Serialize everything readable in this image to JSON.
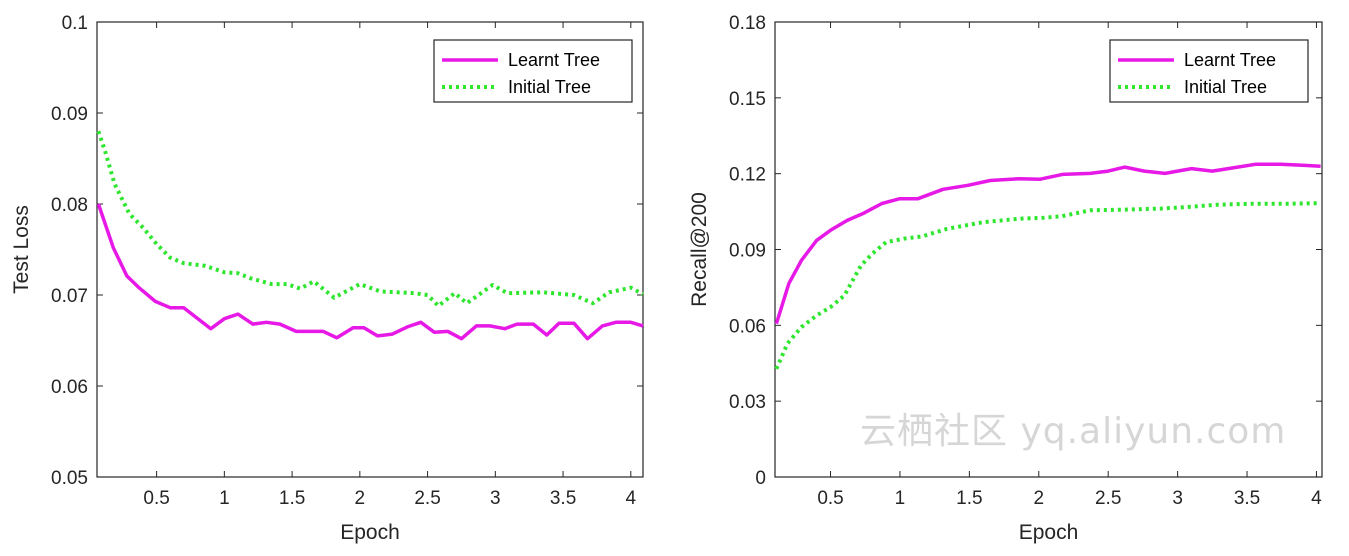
{
  "colors": {
    "learnt": "#e619e6",
    "initial": "#2ee62e",
    "axis": "#262626"
  },
  "watermark": "云栖社区 yq.aliyun.com",
  "chart_data": [
    {
      "type": "line",
      "xlabel": "Epoch",
      "ylabel": "Test Loss",
      "xlim": [
        0.06,
        4.09
      ],
      "ylim": [
        0.05,
        0.1
      ],
      "xticks": [
        0.5,
        1,
        1.5,
        2,
        2.5,
        3,
        3.5,
        4
      ],
      "xtick_labels": [
        "0.5",
        "1",
        "1.5",
        "2",
        "2.5",
        "3",
        "3.5",
        "4"
      ],
      "yticks": [
        0.05,
        0.06,
        0.07,
        0.08,
        0.09,
        0.1
      ],
      "ytick_labels": [
        "0.05",
        "0.06",
        "0.07",
        "0.08",
        "0.09",
        "0.1"
      ],
      "legend_position": "top-right",
      "grid": false,
      "series": [
        {
          "name": "Learnt Tree",
          "style": "solid",
          "x": [
            0.07,
            0.18,
            0.28,
            0.37,
            0.49,
            0.6,
            0.7,
            0.9,
            1.0,
            1.1,
            1.21,
            1.31,
            1.41,
            1.53,
            1.73,
            1.83,
            1.95,
            2.03,
            2.13,
            2.24,
            2.35,
            2.45,
            2.55,
            2.65,
            2.75,
            2.86,
            2.96,
            3.07,
            3.16,
            3.28,
            3.38,
            3.47,
            3.58,
            3.68,
            3.79,
            3.89,
            4.0,
            4.09
          ],
          "y": [
            0.08,
            0.0752,
            0.0721,
            0.0708,
            0.0693,
            0.0686,
            0.0686,
            0.0663,
            0.0674,
            0.0679,
            0.0668,
            0.067,
            0.0668,
            0.066,
            0.066,
            0.0653,
            0.0664,
            0.0664,
            0.0655,
            0.0657,
            0.0665,
            0.067,
            0.0659,
            0.066,
            0.0652,
            0.0666,
            0.0666,
            0.0663,
            0.0668,
            0.0668,
            0.0656,
            0.0669,
            0.0669,
            0.0652,
            0.0666,
            0.067,
            0.067,
            0.0666
          ]
        },
        {
          "name": "Initial Tree",
          "style": "dotted",
          "x": [
            0.07,
            0.12,
            0.19,
            0.3,
            0.4,
            0.5,
            0.6,
            0.7,
            0.86,
            1.0,
            1.1,
            1.2,
            1.35,
            1.46,
            1.56,
            1.66,
            1.81,
            2.0,
            2.15,
            2.4,
            2.5,
            2.58,
            2.7,
            2.79,
            2.98,
            3.09,
            3.35,
            3.58,
            3.72,
            3.84,
            4.0,
            4.09
          ],
          "y": [
            0.088,
            0.0858,
            0.0822,
            0.0789,
            0.0774,
            0.0756,
            0.0741,
            0.0735,
            0.0732,
            0.0725,
            0.0724,
            0.0718,
            0.0712,
            0.0712,
            0.0707,
            0.0715,
            0.0697,
            0.0712,
            0.0704,
            0.0702,
            0.07,
            0.0688,
            0.0702,
            0.0691,
            0.0711,
            0.0702,
            0.0703,
            0.07,
            0.0691,
            0.0703,
            0.0708,
            0.0701
          ]
        }
      ]
    },
    {
      "type": "line",
      "xlabel": "Epoch",
      "ylabel": "Recall@200",
      "xlim": [
        0.1,
        4.04
      ],
      "ylim": [
        0,
        0.18
      ],
      "xticks": [
        0.5,
        1,
        1.5,
        2,
        2.5,
        3,
        3.5,
        4
      ],
      "xtick_labels": [
        "0.5",
        "1",
        "1.5",
        "2",
        "2.5",
        "3",
        "3.5",
        "4"
      ],
      "yticks": [
        0,
        0.03,
        0.06,
        0.09,
        0.12,
        0.15,
        0.18
      ],
      "ytick_labels": [
        "0",
        "0.03",
        "0.06",
        "0.09",
        "0.12",
        "0.15",
        "0.18"
      ],
      "legend_position": "top-right",
      "grid": false,
      "series": [
        {
          "name": "Learnt Tree",
          "style": "solid",
          "x": [
            0.11,
            0.2,
            0.29,
            0.4,
            0.5,
            0.62,
            0.74,
            0.87,
            1.0,
            1.13,
            1.31,
            1.49,
            1.65,
            1.86,
            2.01,
            2.17,
            2.37,
            2.5,
            2.62,
            2.76,
            2.91,
            3.1,
            3.25,
            3.41,
            3.56,
            3.74,
            3.9,
            4.03
          ],
          "y": [
            0.0607,
            0.0766,
            0.0857,
            0.0936,
            0.0976,
            0.1015,
            0.1044,
            0.1082,
            0.1101,
            0.1101,
            0.1138,
            0.1154,
            0.1173,
            0.118,
            0.1178,
            0.1197,
            0.1201,
            0.121,
            0.1226,
            0.121,
            0.1201,
            0.122,
            0.121,
            0.1224,
            0.1237,
            0.1237,
            0.1233,
            0.1229
          ]
        },
        {
          "name": "Initial Tree",
          "style": "dotted",
          "x": [
            0.11,
            0.19,
            0.29,
            0.4,
            0.5,
            0.6,
            0.66,
            0.72,
            0.8,
            0.9,
            1.03,
            1.16,
            1.34,
            1.6,
            1.86,
            2.04,
            2.17,
            2.37,
            2.63,
            2.89,
            3.07,
            3.28,
            3.54,
            3.8,
            4.03
          ],
          "y": [
            0.0428,
            0.0528,
            0.0593,
            0.0639,
            0.0672,
            0.0718,
            0.0778,
            0.0837,
            0.0883,
            0.0929,
            0.0943,
            0.0952,
            0.0982,
            0.1008,
            0.1022,
            0.1026,
            0.1032,
            0.1055,
            0.1058,
            0.1062,
            0.1068,
            0.1077,
            0.1081,
            0.1081,
            0.1083
          ]
        }
      ]
    }
  ]
}
